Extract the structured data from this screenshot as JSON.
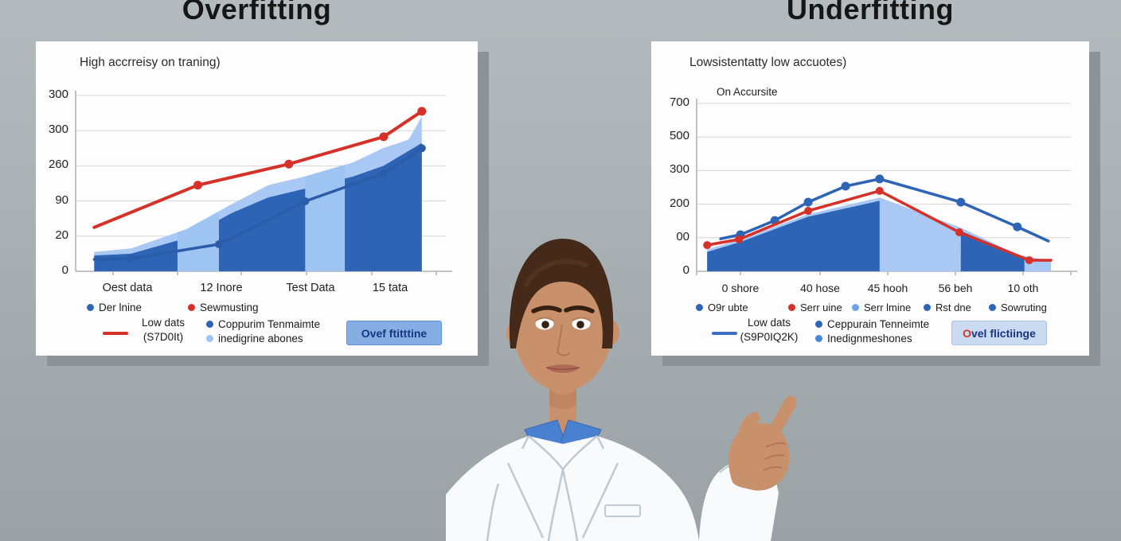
{
  "page": {
    "bg_top": "#b4bbbe",
    "bg_bottom": "#9aa2a6",
    "card_bg": "#fdfdfd",
    "card_shadow": "#8b9397",
    "grid_color": "#d6d6d6",
    "axis_color": "#b2b2b2",
    "header_color": "#161616"
  },
  "headers": {
    "left": "Overfitting",
    "right": "Underfitting"
  },
  "chart_data": [
    {
      "type": "area+line",
      "title": "Overfitting",
      "subtitle": "High accrreisy on traning)",
      "inner_label": "",
      "y_ticks": [
        "300",
        "300",
        "260",
        "90",
        "20",
        "0"
      ],
      "x_ticks": [
        "Oest data",
        "12 Inore",
        "Test Data",
        "15 tata"
      ],
      "legend_row1": [
        {
          "label": "Der lnine",
          "color": "#2e64b5"
        },
        {
          "label": "Sewmusting",
          "color": "#d63128"
        }
      ],
      "legend_row2": {
        "swatch_color": "#d63128",
        "label_line1": "Low dats",
        "label_line2": "(S7D0It)",
        "items": [
          {
            "label": "Coppurim Tenmaimte",
            "color": "#2e64b5"
          },
          {
            "label": "inedigrine abones",
            "color": "#9ec4f2"
          }
        ]
      },
      "button": {
        "label_first": "O",
        "label_rest": "vef ftitttine",
        "bg": "#86aee5",
        "border": "#5d92d8",
        "text_color": "#17367f",
        "first_color": "#17367f"
      },
      "series": [
        {
          "name": "light-area",
          "kind": "area",
          "color": "#a9c9f4",
          "x_frac": [
            0.05,
            0.15,
            0.3,
            0.42,
            0.52,
            0.62,
            0.75,
            0.83,
            0.9,
            0.935
          ],
          "y_frac": [
            0.11,
            0.13,
            0.24,
            0.38,
            0.49,
            0.54,
            0.62,
            0.7,
            0.75,
            0.88
          ]
        },
        {
          "name": "dark-area",
          "kind": "area",
          "color": "#2e64b5",
          "x_frac": [
            0.05,
            0.15,
            0.3,
            0.42,
            0.52,
            0.62,
            0.75,
            0.832,
            0.935
          ],
          "y_frac": [
            0.09,
            0.1,
            0.19,
            0.33,
            0.42,
            0.47,
            0.54,
            0.6,
            0.73
          ]
        },
        {
          "name": "light-band-1",
          "kind": "area",
          "color": "#9ec4f2",
          "x_frac": [
            0.275,
            0.3,
            0.387
          ],
          "y_frac": [
            0.222,
            0.24,
            0.341
          ]
        },
        {
          "name": "light-band-2",
          "kind": "area",
          "color": "#9ec4f2",
          "x_frac": [
            0.62,
            0.727
          ],
          "y_frac": [
            0.54,
            0.606
          ]
        },
        {
          "name": "blue-line",
          "kind": "line",
          "color": "#2a5ca9",
          "width": 3.5,
          "dot_r": 5,
          "dots": [
            1,
            2,
            3,
            4,
            5
          ],
          "x_frac": [
            0.05,
            0.15,
            0.387,
            0.62,
            0.832,
            0.935
          ],
          "y_frac": [
            0.068,
            0.072,
            0.154,
            0.398,
            0.556,
            0.7
          ]
        },
        {
          "name": "red-line",
          "kind": "line",
          "color": "#d63128",
          "width": 4,
          "dot_r": 5.5,
          "dots": [
            1,
            2,
            3,
            4
          ],
          "x_frac": [
            0.05,
            0.33,
            0.576,
            0.832,
            0.935
          ],
          "y_frac": [
            0.25,
            0.49,
            0.61,
            0.765,
            0.91
          ]
        }
      ]
    },
    {
      "type": "area+line",
      "title": "Underfitting",
      "subtitle": "Lowsistentatty low accuotes)",
      "inner_label": "On Accursite",
      "y_ticks": [
        "700",
        "500",
        "300",
        "200",
        "00",
        "0"
      ],
      "x_ticks": [
        "0 shore",
        "40 hose",
        "45 hooh",
        "56 beh",
        "10 oth"
      ],
      "legend_row1": [
        {
          "label": "O9r ubte",
          "color": "#2e64b5"
        },
        {
          "label": "Serr uine",
          "color": "#d63128"
        },
        {
          "label": "Serr lmine",
          "color": "#6fa3e8"
        },
        {
          "label": "Rst dne",
          "color": "#2e64b5"
        },
        {
          "label": "Sowruting",
          "color": "#2e64b5"
        }
      ],
      "legend_row2": {
        "swatch_color": "#3a6fc4",
        "label_line1": "Low dats",
        "label_line2": "(S9P0IQ2K)",
        "items": [
          {
            "label": "Ceppurain Tenneimte",
            "color": "#2e64b5"
          },
          {
            "label": "Inedignmeshones",
            "color": "#4a86d8"
          }
        ]
      },
      "button": {
        "label_first": "O",
        "label_rest": "vel flictiinge",
        "bg": "#cadaf0",
        "border": "#a9c3e6",
        "text_color": "#17367f",
        "first_color": "#d63128"
      },
      "series": [
        {
          "name": "light-area",
          "kind": "area",
          "color": "#a9c9f4",
          "x_frac": [
            0.028,
            0.117,
            0.298,
            0.489,
            0.706,
            0.857,
            0.947
          ],
          "y_frac": [
            0.13,
            0.19,
            0.34,
            0.44,
            0.26,
            0.1,
            0.06
          ]
        },
        {
          "name": "dark-area-left",
          "kind": "area",
          "color": "#2e64b5",
          "x_frac": [
            0.028,
            0.117,
            0.298,
            0.489
          ],
          "y_frac": [
            0.115,
            0.175,
            0.325,
            0.42
          ]
        },
        {
          "name": "dark-area-mid",
          "kind": "area",
          "color": "#2e64b5",
          "x_frac": [
            0.706,
            0.876
          ],
          "y_frac": [
            0.24,
            0.085
          ]
        },
        {
          "name": "blue-line",
          "kind": "line",
          "color": "#2e64b5",
          "width": 3.5,
          "dot_r": 5.5,
          "dots": [
            1,
            2,
            3,
            4,
            5,
            6,
            7
          ],
          "x_frac": [
            0.064,
            0.117,
            0.209,
            0.298,
            0.398,
            0.489,
            0.706,
            0.857,
            0.94
          ],
          "y_frac": [
            0.194,
            0.218,
            0.303,
            0.412,
            0.507,
            0.55,
            0.412,
            0.265,
            0.18
          ]
        },
        {
          "name": "red-line",
          "kind": "line",
          "color": "#d63128",
          "width": 3.5,
          "dot_r": 5,
          "dots": [
            0,
            1,
            2,
            3,
            4,
            5
          ],
          "x_frac": [
            0.028,
            0.113,
            0.298,
            0.489,
            0.702,
            0.889,
            0.947
          ],
          "y_frac": [
            0.156,
            0.19,
            0.36,
            0.479,
            0.232,
            0.066,
            0.066
          ]
        }
      ]
    }
  ],
  "figure": {
    "skin": "#c9906c",
    "skin_shade": "#b07a55",
    "hair": "#452a1a",
    "hair_streak": "#5d3a26",
    "brow": "#33200f",
    "eye": "#33220f",
    "shirt": "#4a80d0",
    "shirt_edge": "#3767b8",
    "sweater": "#26509e",
    "coat": "#f8fafb",
    "coat_line": "#bdc9d3",
    "lips": "#b06a55",
    "mouth_line": "#8e5242"
  }
}
